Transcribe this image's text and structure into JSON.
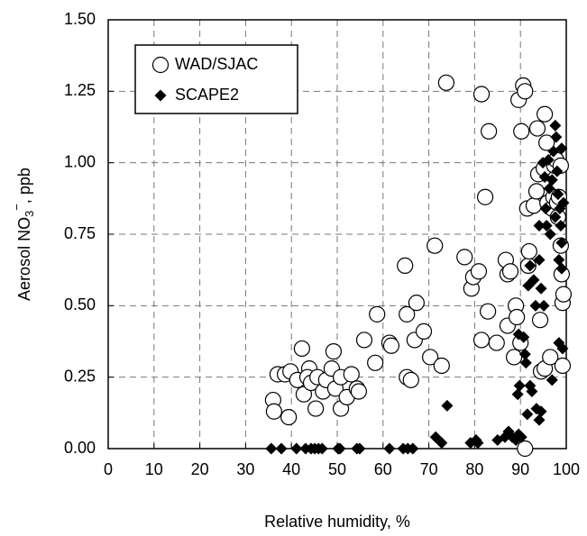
{
  "chart_data": {
    "type": "scatter",
    "x_label": "Relative humidity,  %",
    "y_label": {
      "text": "Aerosol NO",
      "subscript": "3",
      "superscript": "−",
      "suffix": ",  ppb"
    },
    "xlim": [
      0,
      100
    ],
    "xticks": [
      0,
      10,
      20,
      30,
      40,
      50,
      60,
      70,
      80,
      90,
      100
    ],
    "ylim": [
      0,
      1.5
    ],
    "yticks": [
      {
        "value": 0,
        "label": "0.00"
      },
      {
        "value": 0.25,
        "label": "0.25"
      },
      {
        "value": 0.5,
        "label": "0.50"
      },
      {
        "value": 0.75,
        "label": "0.75"
      },
      {
        "value": 1,
        "label": "1.00"
      },
      {
        "value": 1.25,
        "label": "1.25"
      },
      {
        "value": 1.5,
        "label": "1.50"
      }
    ],
    "grid": true,
    "legend": "upper left",
    "series": [
      {
        "name": "WAD/SJAC",
        "marker": "circle",
        "color": "#000000",
        "x": [
          36,
          36.2,
          37,
          38.6,
          39.4,
          39.8,
          41.3,
          42.3,
          42.7,
          43.9,
          43.5,
          44.3,
          45.3,
          45.7,
          46.9,
          47.6,
          48.8,
          49.2,
          49.6,
          50.8,
          50.8,
          52.1,
          53.1,
          54.3,
          54.7,
          55.9,
          58.3,
          58.7,
          61.4,
          61.8,
          64.8,
          65.2,
          65.2,
          66.1,
          66.9,
          67.3,
          68.9,
          70.3,
          71.3,
          72.8,
          73.8,
          77.8,
          79.3,
          79.7,
          80.9,
          81.5,
          81.5,
          82.3,
          82.9,
          83.1,
          84.8,
          86.8,
          87.2,
          87.2,
          87.8,
          88.6,
          89,
          89.2,
          89.6,
          90,
          90.2,
          90.6,
          91,
          91,
          91.5,
          91.7,
          91.9,
          92.9,
          93.5,
          93.7,
          93.9,
          94.3,
          94.5,
          95.1,
          95.3,
          95.3,
          95.7,
          95.9,
          96.5,
          96.9,
          97.2,
          97.4,
          97.8,
          98,
          98.2,
          98.4,
          98.8,
          98.8,
          99,
          99.2,
          99.2,
          99.4
        ],
        "values": [
          0.17,
          0.13,
          0.26,
          0.26,
          0.11,
          0.27,
          0.24,
          0.35,
          0.19,
          0.28,
          0.25,
          0.23,
          0.14,
          0.25,
          0.2,
          0.24,
          0.28,
          0.34,
          0.21,
          0.25,
          0.14,
          0.18,
          0.26,
          0.21,
          0.2,
          0.38,
          0.3,
          0.47,
          0.37,
          0.36,
          0.64,
          0.47,
          0.25,
          0.24,
          0.38,
          0.51,
          0.41,
          0.32,
          0.71,
          0.29,
          1.28,
          0.67,
          0.56,
          0.6,
          0.62,
          0.38,
          1.24,
          0.88,
          0.48,
          1.11,
          0.37,
          0.66,
          0.61,
          0.43,
          0.62,
          0.32,
          0.5,
          0.46,
          1.22,
          0.37,
          1.11,
          1.27,
          1.25,
          0,
          0.84,
          0.64,
          0.69,
          0.85,
          0.9,
          1.12,
          0.96,
          0.45,
          0.27,
          0.98,
          1.17,
          0.28,
          1.07,
          0.86,
          0.32,
          0.84,
          0.88,
          0.99,
          1.01,
          0.86,
          0.81,
          0.88,
          0.99,
          0.71,
          0.61,
          0.51,
          0.29,
          0.54
        ]
      },
      {
        "name": "SCAPE2",
        "marker": "diamond",
        "color": "#000000",
        "x": [
          35.6,
          37.8,
          41.1,
          43.1,
          44.3,
          45.1,
          45.9,
          46.7,
          50.2,
          50.6,
          54.3,
          54.9,
          61.4,
          64.4,
          65.4,
          66.5,
          71.5,
          72.8,
          74,
          79.1,
          80.3,
          80.7,
          85,
          86.6,
          87.4,
          88.2,
          89,
          89.6,
          90.2,
          89.4,
          89.8,
          89.6,
          90.7,
          91,
          91.2,
          91.5,
          91.7,
          92.1,
          92.1,
          92.5,
          92.9,
          93.3,
          93.5,
          94.1,
          94.5,
          94.1,
          94.1,
          94.5,
          94.9,
          95.1,
          95.3,
          95.5,
          95.7,
          96.1,
          96.3,
          96.5,
          96.9,
          96.9,
          97.2,
          97.6,
          97.6,
          97.8,
          98,
          98.2,
          98.4,
          98.4,
          98.6,
          98.8,
          99,
          99,
          99,
          99.2,
          99.4
        ],
        "values": [
          0,
          0,
          0,
          0,
          0,
          0,
          0,
          0,
          0,
          0,
          0,
          0,
          0,
          0,
          0,
          0,
          0.04,
          0.02,
          0.15,
          0.02,
          0.03,
          0.02,
          0.03,
          0.04,
          0.06,
          0.04,
          0.03,
          0.05,
          0.04,
          0.19,
          0.22,
          0.4,
          0.39,
          0.33,
          0.3,
          0.12,
          0.57,
          0.64,
          0.22,
          0.2,
          0.59,
          0.5,
          0.14,
          0.1,
          0.13,
          0.66,
          0.78,
          0.56,
          1,
          0.5,
          0.95,
          0.84,
          0.78,
          1.01,
          0.91,
          0.75,
          0.94,
          0.24,
          1.04,
          1.13,
          0.81,
          1.09,
          0.97,
          0.89,
          0.66,
          0.37,
          0.84,
          0.78,
          0.72,
          0.63,
          1.05,
          0.35,
          0.86
        ]
      }
    ]
  }
}
